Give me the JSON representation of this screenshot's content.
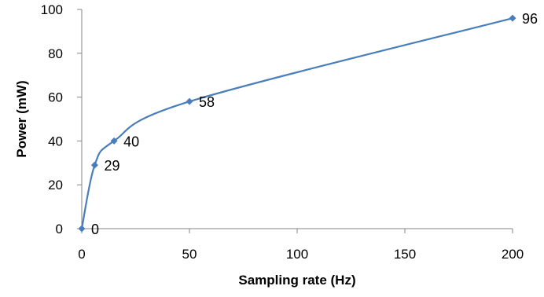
{
  "chart_data": {
    "type": "line",
    "xlabel": "Sampling rate (Hz)",
    "ylabel": "Power (mW)",
    "xlim": [
      0,
      200
    ],
    "ylim": [
      0,
      100
    ],
    "xticks": [
      0,
      50,
      100,
      150,
      200
    ],
    "yticks": [
      0,
      20,
      40,
      60,
      80,
      100
    ],
    "grid": false,
    "smooth": true,
    "series": [
      {
        "points": [
          {
            "x": 0,
            "y": 0,
            "label": "0"
          },
          {
            "x": 6,
            "y": 29,
            "label": "29"
          },
          {
            "x": 15,
            "y": 40,
            "label": "40"
          },
          {
            "x": 50,
            "y": 58,
            "label": "58"
          },
          {
            "x": 200,
            "y": 96,
            "label": "96"
          }
        ],
        "color": "#4a7ebb",
        "marker": "diamond"
      }
    ]
  }
}
